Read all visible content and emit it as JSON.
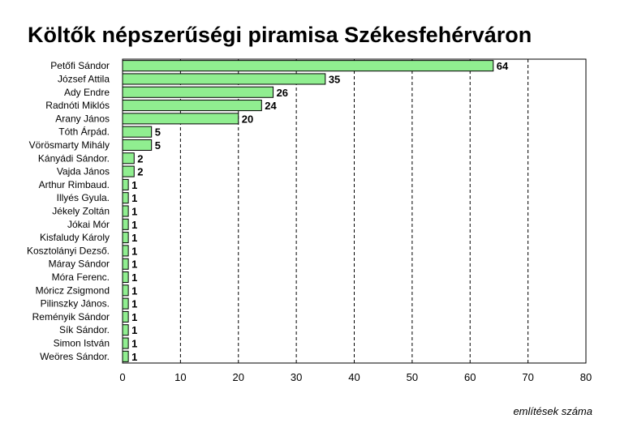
{
  "chart_data": {
    "type": "bar",
    "orientation": "horizontal",
    "title": "Költők népszerűségi piramisa Székesfehérváron",
    "xlabel": "említések száma",
    "ylabel": "",
    "xlim": [
      0,
      80
    ],
    "xticks": [
      0,
      10,
      20,
      30,
      40,
      50,
      60,
      70,
      80
    ],
    "grid": "vertical dashed",
    "bar_color": "#90EE90",
    "categories": [
      "Petőfi Sándor",
      "József Attila",
      "Ady Endre",
      "Radnóti Miklós",
      "Arany János",
      "Tóth Árpád.",
      "Vörösmarty Mihály",
      "Kányádi Sándor.",
      "Vajda János",
      "Arthur Rimbaud.",
      "Illyés Gyula.",
      "Jékely Zoltán",
      "Jókai Mór",
      "Kisfaludy Károly",
      "Kosztolányi Dezső.",
      "Máray Sándor",
      "Móra Ferenc.",
      "Móricz Zsigmond",
      "Pilinszky János.",
      "Reményik Sándor",
      "Sík Sándor.",
      "Simon István",
      "Weöres Sándor."
    ],
    "values": [
      64,
      35,
      26,
      24,
      20,
      5,
      5,
      2,
      2,
      1,
      1,
      1,
      1,
      1,
      1,
      1,
      1,
      1,
      1,
      1,
      1,
      1,
      1
    ]
  }
}
